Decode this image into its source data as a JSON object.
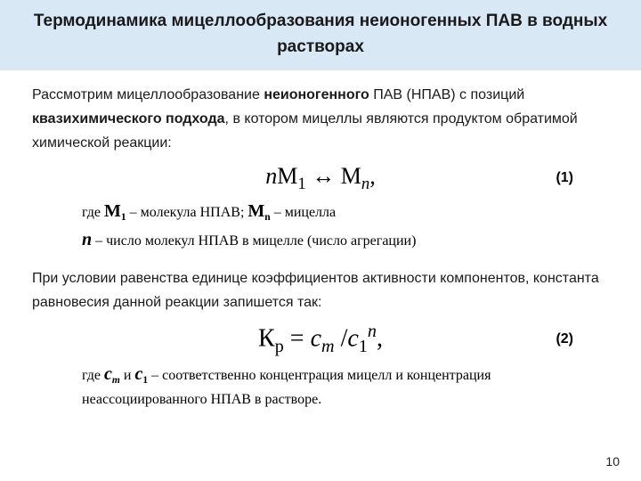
{
  "title": "Термодинамика мицеллообразования неионогенных ПАВ в водных растворах",
  "para1_a": "Рассмотрим мицеллообразование ",
  "para1_b": "неионогенного",
  "para1_c": " ПАВ (НПАВ) с позиций ",
  "para1_d": "квазихимического подхода",
  "para1_e": ", в котором мицеллы являются продуктом обратимой химической реакции:",
  "eq1_n": "n",
  "eq1_M": "M",
  "eq1_sub1": "1",
  "eq1_arrow": " ↔   ",
  "eq1_M2": "M",
  "eq1_subn": "n",
  "eq1_comma": ",",
  "eq1_num": "(1)",
  "def1_pre": "где ",
  "def1_M1": "М",
  "def1_M1sub": "1",
  "def1_mid": " – молекула НПАВ; ",
  "def1_Mn": "М",
  "def1_Mnsub": "n",
  "def1_post": " – мицелла",
  "def2_n": "n",
  "def2_rest": " – число молекул НПАВ в мицелле (число агрегации)",
  "para2": "При условии равенства единице коэффициентов активности компонентов, константа равновесия данной реакции запишется так:",
  "eq2_K": "К",
  "eq2_Ksub": "р",
  "eq2_eq": " = ",
  "eq2_cm": "с",
  "eq2_cm_sub": "m",
  "eq2_slash": " /",
  "eq2_c1": "c",
  "eq2_c1sub": "1",
  "eq2_c1sup": "n",
  "eq2_end": ",",
  "eq2_num": "(2)",
  "def3_pre": "где ",
  "def3_cm": "с",
  "def3_cm_sub": "m",
  "def3_and": " и ",
  "def3_c1": "с",
  "def3_c1_sub": "1",
  "def3_rest": " – соответственно концентрация мицелл и концентрация неассоциированного НПАВ в растворе.",
  "pagenum": "10",
  "colors": {
    "title_bg": "#d9e8f5",
    "text": "#1a1a1a",
    "bg": "#ffffff"
  }
}
